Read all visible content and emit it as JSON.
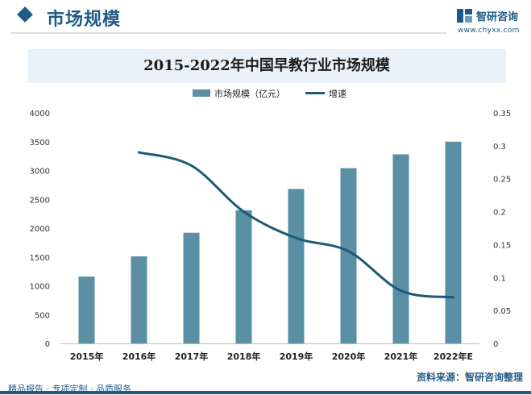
{
  "header": {
    "title": "市场规模",
    "logo_name": "智研咨询",
    "logo_url": "www.chyxx.com"
  },
  "chart_data": {
    "type": "bar",
    "title": "2015-2022年中国早教行业市场规模",
    "categories": [
      "2015年",
      "2016年",
      "2017年",
      "2018年",
      "2019年",
      "2020年",
      "2021年",
      "2022年E"
    ],
    "series": [
      {
        "name": "市场规模（亿元）",
        "type": "bar",
        "axis": "left",
        "color": "#5b8fa3",
        "values": [
          1160,
          1510,
          1920,
          2310,
          2680,
          3040,
          3280,
          3500
        ]
      },
      {
        "name": "增速",
        "type": "line",
        "axis": "right",
        "color": "#1c5b78",
        "values": [
          null,
          0.29,
          0.27,
          0.2,
          0.16,
          0.14,
          0.08,
          0.07
        ]
      }
    ],
    "ylim": [
      0,
      4000
    ],
    "yticks": [
      "0",
      "500",
      "1000",
      "1500",
      "2000",
      "2500",
      "3000",
      "3500",
      "4000"
    ],
    "y2lim": [
      0,
      0.35
    ],
    "y2ticks": [
      "0",
      "0.05",
      "0.1",
      "0.15",
      "0.2",
      "0.25",
      "0.3",
      "0.35"
    ],
    "legend_position": "top-center"
  },
  "footer": {
    "left": "精品报告 · 专项定制 · 品质服务",
    "source": "资料来源：智研咨询整理"
  }
}
